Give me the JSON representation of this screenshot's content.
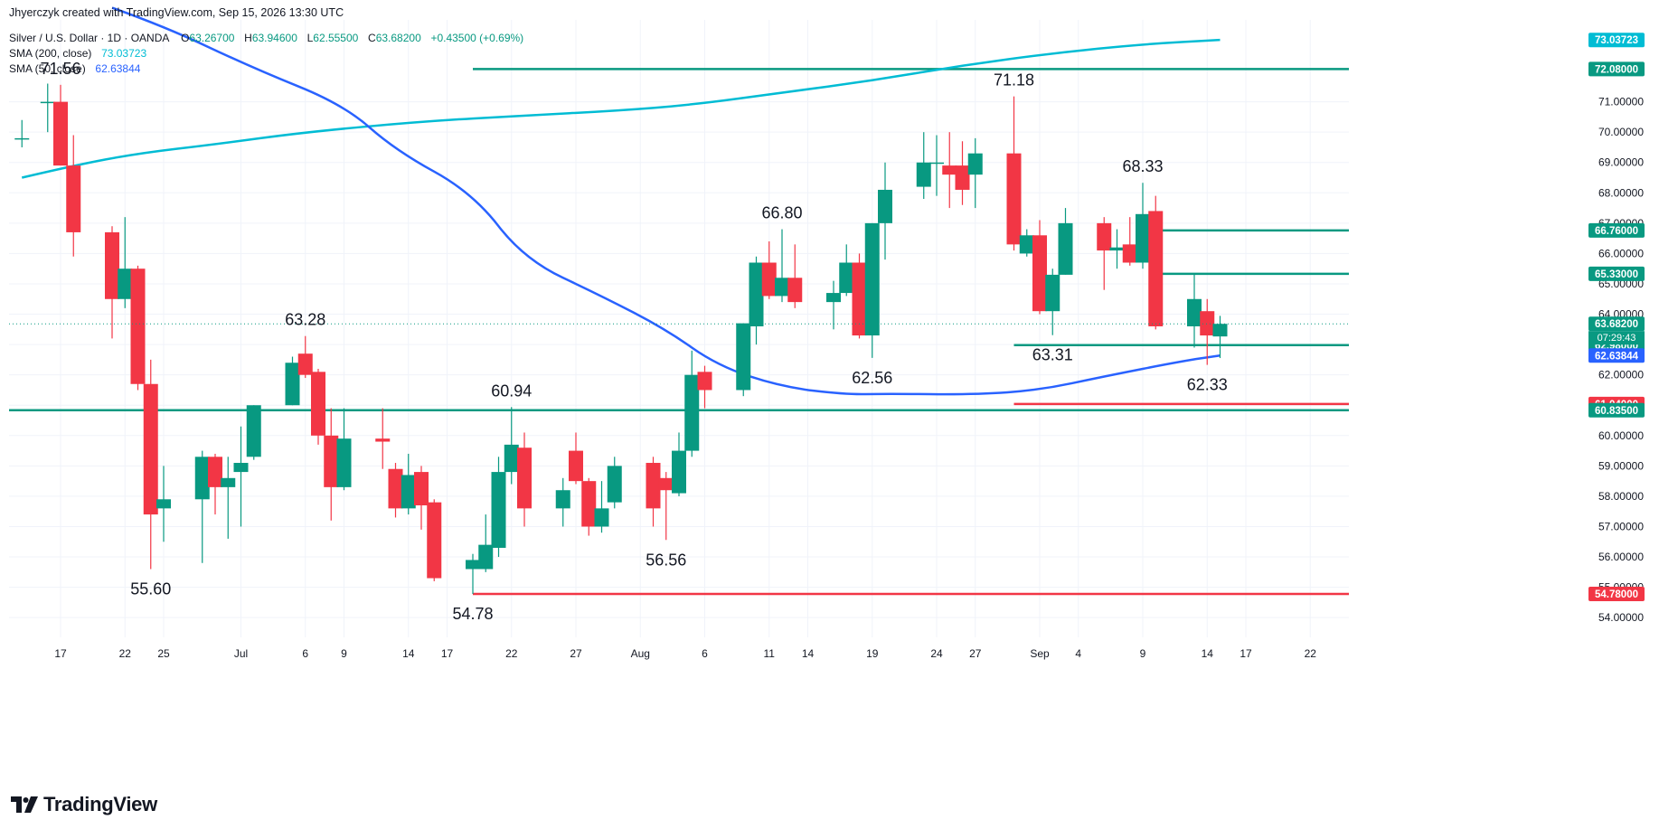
{
  "header": {
    "credit": "Jhyerczyk created with TradingView.com, Sep 15, 2026 13:30 UTC",
    "symbol": "Silver / U.S. Dollar · 1D · OANDA",
    "ohlc": {
      "o_label": "O",
      "o": "63.26700",
      "h_label": "H",
      "h": "63.94600",
      "l_label": "L",
      "l": "62.55500",
      "c_label": "C",
      "c": "63.68200",
      "change": "+0.43500 (+0.69%)"
    },
    "sma200": {
      "label": "SMA (200, close)",
      "value": "73.03723"
    },
    "sma50": {
      "label": "SMA (50, close)",
      "value": "62.63844"
    }
  },
  "logo": {
    "text": "TradingView",
    "icon": "tradingview-logo-icon"
  },
  "colors": {
    "up": "#089981",
    "down": "#f23645",
    "sma200": "#00bcd4",
    "sma50": "#2962ff",
    "support": "#089981",
    "resistance_red": "#f23645",
    "axis_text": "#131722",
    "grid": "#f0f3fa"
  },
  "chart_data": {
    "type": "candlestick",
    "title": "Silver / U.S. Dollar · 1D · OANDA",
    "ylim": [
      53.35,
      73.7
    ],
    "grid": true,
    "y_ticks": [
      "54.00000",
      "55.00000",
      "56.00000",
      "57.00000",
      "58.00000",
      "59.00000",
      "60.00000",
      "61.00000",
      "62.00000",
      "63.00000",
      "64.00000",
      "65.00000",
      "66.00000",
      "67.00000",
      "68.00000",
      "69.00000",
      "70.00000",
      "71.00000"
    ],
    "x_ticks": [
      {
        "day": -13,
        "label": "17"
      },
      {
        "day": -8,
        "label": "22"
      },
      {
        "day": -5,
        "label": "25"
      },
      {
        "day": 1,
        "label": "Jul"
      },
      {
        "day": 6,
        "label": "6"
      },
      {
        "day": 9,
        "label": "9"
      },
      {
        "day": 14,
        "label": "14"
      },
      {
        "day": 17,
        "label": "17"
      },
      {
        "day": 22,
        "label": "22"
      },
      {
        "day": 27,
        "label": "27"
      },
      {
        "day": 32,
        "label": "Aug"
      },
      {
        "day": 37,
        "label": "6"
      },
      {
        "day": 42,
        "label": "11"
      },
      {
        "day": 45,
        "label": "14"
      },
      {
        "day": 50,
        "label": "19"
      },
      {
        "day": 55,
        "label": "24"
      },
      {
        "day": 58,
        "label": "27"
      },
      {
        "day": 63,
        "label": "Sep"
      },
      {
        "day": 66,
        "label": "4"
      },
      {
        "day": 71,
        "label": "9"
      },
      {
        "day": 76,
        "label": "14"
      },
      {
        "day": 79,
        "label": "17"
      },
      {
        "day": 84,
        "label": "22"
      }
    ],
    "candles": [
      {
        "d": -16,
        "o": 69.8,
        "h": 70.4,
        "l": 69.5,
        "c": 69.8
      },
      {
        "d": -14,
        "o": 71.0,
        "h": 71.6,
        "l": 70.0,
        "c": 71.0
      },
      {
        "d": -13,
        "o": 71.0,
        "h": 71.56,
        "l": 68.9,
        "c": 68.9
      },
      {
        "d": -12,
        "o": 68.9,
        "h": 69.9,
        "l": 65.9,
        "c": 66.7
      },
      {
        "d": -9,
        "o": 66.7,
        "h": 66.9,
        "l": 63.2,
        "c": 64.5
      },
      {
        "d": -8,
        "o": 64.5,
        "h": 67.2,
        "l": 64.2,
        "c": 65.5
      },
      {
        "d": -7,
        "o": 65.5,
        "h": 65.6,
        "l": 61.5,
        "c": 61.7
      },
      {
        "d": -6,
        "o": 61.7,
        "h": 62.5,
        "l": 55.6,
        "c": 57.4
      },
      {
        "d": -5,
        "o": 57.6,
        "h": 59.0,
        "l": 56.5,
        "c": 57.9
      },
      {
        "d": -2,
        "o": 57.9,
        "h": 59.5,
        "l": 55.8,
        "c": 59.3
      },
      {
        "d": -1,
        "o": 59.3,
        "h": 59.4,
        "l": 57.4,
        "c": 58.3
      },
      {
        "d": 0,
        "o": 58.3,
        "h": 59.3,
        "l": 56.6,
        "c": 58.6
      },
      {
        "d": 1,
        "o": 58.8,
        "h": 60.3,
        "l": 57.0,
        "c": 59.1
      },
      {
        "d": 2,
        "o": 59.3,
        "h": 61.0,
        "l": 59.2,
        "c": 61.0
      },
      {
        "d": 5,
        "o": 61.0,
        "h": 62.6,
        "l": 61.0,
        "c": 62.4
      },
      {
        "d": 6,
        "o": 62.7,
        "h": 63.28,
        "l": 61.9,
        "c": 62.0
      },
      {
        "d": 7,
        "o": 62.1,
        "h": 62.2,
        "l": 59.7,
        "c": 60.0
      },
      {
        "d": 8,
        "o": 60.0,
        "h": 60.9,
        "l": 57.2,
        "c": 58.3
      },
      {
        "d": 9,
        "o": 58.3,
        "h": 60.9,
        "l": 58.2,
        "c": 59.9
      },
      {
        "d": 12,
        "o": 59.9,
        "h": 60.9,
        "l": 58.9,
        "c": 59.8
      },
      {
        "d": 13,
        "o": 58.9,
        "h": 59.1,
        "l": 57.3,
        "c": 57.6
      },
      {
        "d": 14,
        "o": 57.6,
        "h": 59.4,
        "l": 57.4,
        "c": 58.7
      },
      {
        "d": 15,
        "o": 58.8,
        "h": 59.0,
        "l": 56.9,
        "c": 57.7
      },
      {
        "d": 16,
        "o": 57.8,
        "h": 57.9,
        "l": 55.2,
        "c": 55.3
      },
      {
        "d": 19,
        "o": 55.6,
        "h": 56.1,
        "l": 54.78,
        "c": 55.9
      },
      {
        "d": 20,
        "o": 55.6,
        "h": 57.4,
        "l": 55.5,
        "c": 56.4
      },
      {
        "d": 21,
        "o": 56.3,
        "h": 59.3,
        "l": 56.0,
        "c": 58.8
      },
      {
        "d": 22,
        "o": 58.8,
        "h": 60.94,
        "l": 58.4,
        "c": 59.7
      },
      {
        "d": 23,
        "o": 59.6,
        "h": 60.1,
        "l": 57.0,
        "c": 57.6
      },
      {
        "d": 26,
        "o": 57.6,
        "h": 58.6,
        "l": 57.0,
        "c": 58.2
      },
      {
        "d": 27,
        "o": 59.5,
        "h": 60.1,
        "l": 58.4,
        "c": 58.5
      },
      {
        "d": 28,
        "o": 58.5,
        "h": 58.6,
        "l": 56.7,
        "c": 57.0
      },
      {
        "d": 29,
        "o": 57.0,
        "h": 58.5,
        "l": 56.8,
        "c": 57.6
      },
      {
        "d": 30,
        "o": 57.8,
        "h": 59.3,
        "l": 57.6,
        "c": 59.0
      },
      {
        "d": 33,
        "o": 59.1,
        "h": 59.3,
        "l": 57.0,
        "c": 57.6
      },
      {
        "d": 34,
        "o": 58.6,
        "h": 58.8,
        "l": 56.56,
        "c": 58.2
      },
      {
        "d": 35,
        "o": 58.1,
        "h": 60.1,
        "l": 58.0,
        "c": 59.5
      },
      {
        "d": 36,
        "o": 59.5,
        "h": 62.8,
        "l": 59.3,
        "c": 62.0
      },
      {
        "d": 37,
        "o": 62.1,
        "h": 62.3,
        "l": 60.9,
        "c": 61.5
      },
      {
        "d": 40,
        "o": 61.5,
        "h": 63.7,
        "l": 61.3,
        "c": 63.7
      },
      {
        "d": 41,
        "o": 63.6,
        "h": 65.9,
        "l": 63.0,
        "c": 65.7
      },
      {
        "d": 42,
        "o": 65.7,
        "h": 66.4,
        "l": 64.5,
        "c": 64.6
      },
      {
        "d": 43,
        "o": 64.6,
        "h": 66.8,
        "l": 64.4,
        "c": 65.2
      },
      {
        "d": 44,
        "o": 65.2,
        "h": 66.3,
        "l": 64.2,
        "c": 64.4
      },
      {
        "d": 47,
        "o": 64.4,
        "h": 65.1,
        "l": 63.5,
        "c": 64.7
      },
      {
        "d": 48,
        "o": 64.7,
        "h": 66.3,
        "l": 64.6,
        "c": 65.7
      },
      {
        "d": 49,
        "o": 65.7,
        "h": 66.0,
        "l": 63.2,
        "c": 63.3
      },
      {
        "d": 50,
        "o": 63.3,
        "h": 67.0,
        "l": 62.56,
        "c": 67.0
      },
      {
        "d": 51,
        "o": 67.0,
        "h": 69.0,
        "l": 65.8,
        "c": 68.1
      },
      {
        "d": 54,
        "o": 68.2,
        "h": 70.0,
        "l": 67.8,
        "c": 69.0
      },
      {
        "d": 55,
        "o": 69.0,
        "h": 69.9,
        "l": 67.9,
        "c": 69.0
      },
      {
        "d": 56,
        "o": 68.9,
        "h": 70.0,
        "l": 67.5,
        "c": 68.6
      },
      {
        "d": 57,
        "o": 68.9,
        "h": 69.7,
        "l": 67.6,
        "c": 68.1
      },
      {
        "d": 58,
        "o": 68.6,
        "h": 69.8,
        "l": 67.5,
        "c": 69.3
      },
      {
        "d": 61,
        "o": 69.3,
        "h": 71.18,
        "l": 66.1,
        "c": 66.3
      },
      {
        "d": 62,
        "o": 66.0,
        "h": 66.8,
        "l": 65.9,
        "c": 66.6
      },
      {
        "d": 63,
        "o": 66.6,
        "h": 67.1,
        "l": 64.0,
        "c": 64.1
      },
      {
        "d": 64,
        "o": 64.1,
        "h": 65.5,
        "l": 63.31,
        "c": 65.3
      },
      {
        "d": 65,
        "o": 65.3,
        "h": 67.5,
        "l": 65.3,
        "c": 67.0
      },
      {
        "d": 68,
        "o": 67.0,
        "h": 67.2,
        "l": 64.8,
        "c": 66.1
      },
      {
        "d": 69,
        "o": 66.1,
        "h": 66.8,
        "l": 65.5,
        "c": 66.2
      },
      {
        "d": 70,
        "o": 66.3,
        "h": 67.2,
        "l": 65.6,
        "c": 65.7
      },
      {
        "d": 71,
        "o": 65.7,
        "h": 68.33,
        "l": 65.5,
        "c": 67.3
      },
      {
        "d": 72,
        "o": 67.4,
        "h": 67.9,
        "l": 63.5,
        "c": 63.6
      },
      {
        "d": 75,
        "o": 63.6,
        "h": 65.3,
        "l": 62.9,
        "c": 64.5
      },
      {
        "d": 76,
        "o": 64.1,
        "h": 64.5,
        "l": 62.33,
        "c": 63.3
      },
      {
        "d": 77,
        "o": 63.267,
        "h": 63.946,
        "l": 62.555,
        "c": 63.682
      }
    ],
    "sma200": [
      {
        "d": -16,
        "v": 68.5
      },
      {
        "d": -12,
        "v": 68.9
      },
      {
        "d": -7,
        "v": 69.3
      },
      {
        "d": -1,
        "v": 69.6
      },
      {
        "d": 6,
        "v": 70.0
      },
      {
        "d": 15,
        "v": 70.35
      },
      {
        "d": 23,
        "v": 70.55
      },
      {
        "d": 30,
        "v": 70.7
      },
      {
        "d": 36,
        "v": 70.9
      },
      {
        "d": 43,
        "v": 71.3
      },
      {
        "d": 50,
        "v": 71.7
      },
      {
        "d": 57,
        "v": 72.2
      },
      {
        "d": 64,
        "v": 72.6
      },
      {
        "d": 71,
        "v": 72.9
      },
      {
        "d": 77,
        "v": 73.04
      }
    ],
    "sma50": [
      {
        "d": -9,
        "v": 74.1
      },
      {
        "d": -5,
        "v": 73.5
      },
      {
        "d": 2,
        "v": 72.1
      },
      {
        "d": 9,
        "v": 70.9
      },
      {
        "d": 13,
        "v": 69.4
      },
      {
        "d": 19,
        "v": 68.0
      },
      {
        "d": 23,
        "v": 65.8
      },
      {
        "d": 29,
        "v": 64.6
      },
      {
        "d": 34,
        "v": 63.5
      },
      {
        "d": 38,
        "v": 62.3
      },
      {
        "d": 43,
        "v": 61.6
      },
      {
        "d": 48,
        "v": 61.35
      },
      {
        "d": 51,
        "v": 61.38
      },
      {
        "d": 58,
        "v": 61.35
      },
      {
        "d": 63,
        "v": 61.5
      },
      {
        "d": 68,
        "v": 61.95
      },
      {
        "d": 74,
        "v": 62.45
      },
      {
        "d": 77,
        "v": 62.64
      }
    ],
    "horizontal_levels": [
      {
        "value": 72.08,
        "label": "72.08000",
        "color": "#089981",
        "from_day": 19
      },
      {
        "value": 66.76,
        "label": "66.76000",
        "color": "#089981",
        "from_day": 72
      },
      {
        "value": 65.33,
        "label": "65.33000",
        "color": "#089981",
        "from_day": 72
      },
      {
        "value": 62.98,
        "label": "62.98000",
        "color": "#089981",
        "from_day": 61
      },
      {
        "value": 61.04,
        "label": "61.04000",
        "color": "#f23645",
        "from_day": 61
      },
      {
        "value": 60.835,
        "label": "60.83500",
        "color": "#089981",
        "from_day": -17
      },
      {
        "value": 54.78,
        "label": "54.78000",
        "color": "#f23645",
        "from_day": 19
      }
    ],
    "price_tags": [
      {
        "value": 73.03723,
        "label": "73.03723",
        "color": "#00bcd4"
      },
      {
        "value": 63.682,
        "label": "63.68200",
        "sub": "07:29:43",
        "color": "#089981"
      },
      {
        "value": 62.63844,
        "label": "62.63844",
        "color": "#2962ff"
      }
    ],
    "annotations": [
      {
        "d": -13,
        "v": 71.56,
        "text": "71.56",
        "pos": "above"
      },
      {
        "d": 6,
        "v": 63.28,
        "text": "63.28",
        "pos": "above"
      },
      {
        "d": 22,
        "v": 60.94,
        "text": "60.94",
        "pos": "above"
      },
      {
        "d": 43,
        "v": 66.8,
        "text": "66.80",
        "pos": "above"
      },
      {
        "d": 61,
        "v": 71.18,
        "text": "71.18",
        "pos": "above"
      },
      {
        "d": 71,
        "v": 68.33,
        "text": "68.33",
        "pos": "above"
      },
      {
        "d": -6,
        "v": 55.6,
        "text": "55.60",
        "pos": "below"
      },
      {
        "d": 19,
        "v": 54.78,
        "text": "54.78",
        "pos": "below"
      },
      {
        "d": 34,
        "v": 56.56,
        "text": "56.56",
        "pos": "below"
      },
      {
        "d": 50,
        "v": 62.56,
        "text": "62.56",
        "pos": "below"
      },
      {
        "d": 64,
        "v": 63.31,
        "text": "63.31",
        "pos": "below"
      },
      {
        "d": 76,
        "v": 62.33,
        "text": "62.33",
        "pos": "below"
      }
    ]
  }
}
